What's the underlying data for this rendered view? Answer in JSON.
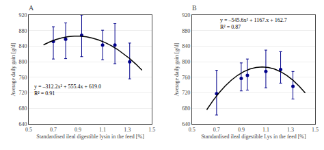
{
  "chart_data": [
    {
      "type": "scatter",
      "title": "A",
      "xlabel": "Standardised ileal digestible lysin in the feed [%]",
      "ylabel": "Average daily gain [g/d]",
      "xlim": [
        0.5,
        1.5
      ],
      "ylim": [
        640,
        920
      ],
      "xticks": [
        0.5,
        0.7,
        0.9,
        1.1,
        1.3,
        1.5
      ],
      "yticks": [
        640,
        680,
        720,
        760,
        800,
        840,
        880,
        920
      ],
      "grid": "y",
      "series": [
        {
          "type": "scatter",
          "color": "#00008B",
          "x": [
            0.7,
            0.8,
            0.93,
            1.1,
            1.2,
            1.32
          ],
          "values": [
            852,
            858,
            868,
            843,
            843,
            800
          ],
          "error_low": [
            45,
            50,
            55,
            38,
            48,
            44
          ],
          "error_high": [
            38,
            42,
            52,
            38,
            55,
            48
          ]
        },
        {
          "type": "line",
          "color": "#000000",
          "x": [
            0.62,
            0.67,
            0.72,
            0.77,
            0.82,
            0.87,
            0.92,
            0.97,
            1.02,
            1.07,
            1.12,
            1.17,
            1.22,
            1.27,
            1.32,
            1.37,
            1.42
          ],
          "values": [
            843.33832,
            850.97142,
            857.04352,
            861.55462,
            864.50472,
            865.89382,
            865.72192,
            863.98902,
            860.69512,
            855.84022,
            849.42432,
            841.44742,
            831.90952,
            820.81062,
            808.15072,
            793.92982,
            778.14792
          ]
        }
      ],
      "annotations": [
        {
          "text": "y = –312.2x² + 555.4x + 619.0\nR² = 0.91",
          "x": 0.535,
          "y": 748
        }
      ]
    },
    {
      "type": "scatter",
      "title": "B",
      "xlabel": "Standardised ileal digestible Lys in the feed [%]",
      "ylabel": "Average daily gain [g/d]",
      "xlim": [
        0.5,
        1.5
      ],
      "ylim": [
        640,
        920
      ],
      "xticks": [
        0.5,
        0.7,
        0.9,
        1.1,
        1.3,
        1.5
      ],
      "yticks": [
        640,
        680,
        720,
        760,
        800,
        840,
        880,
        920
      ],
      "grid": "y",
      "series": [
        {
          "type": "scatter",
          "color": "#00008B",
          "x": [
            0.7,
            0.9,
            0.95,
            1.1,
            1.22,
            1.32
          ],
          "values": [
            718,
            757,
            765,
            775,
            780,
            737
          ],
          "error_low": [
            55,
            32,
            38,
            42,
            35,
            33
          ],
          "error_high": [
            60,
            40,
            42,
            55,
            46,
            38
          ]
        },
        {
          "type": "line",
          "color": "#000000",
          "x": [
            0.62,
            0.67,
            0.72,
            0.77,
            0.82,
            0.87,
            0.92,
            0.97,
            1.02,
            1.07,
            1.12,
            1.17,
            1.22,
            1.27,
            1.32,
            1.37,
            1.42
          ],
          "values": [
            676.51136,
            699.67016,
            720.10096,
            737.80376,
            752.77856,
            765.02536,
            774.54416,
            781.33496,
            785.39776,
            786.73256,
            785.33936,
            781.21816,
            774.36896,
            764.79176,
            752.48656,
            737.45336,
            719.69216
          ]
        }
      ],
      "annotations": [
        {
          "text": "y = –545.6x² + 1167.x + 162.7\nR² = 0.87",
          "x": 0.72,
          "y": 918
        }
      ]
    }
  ]
}
